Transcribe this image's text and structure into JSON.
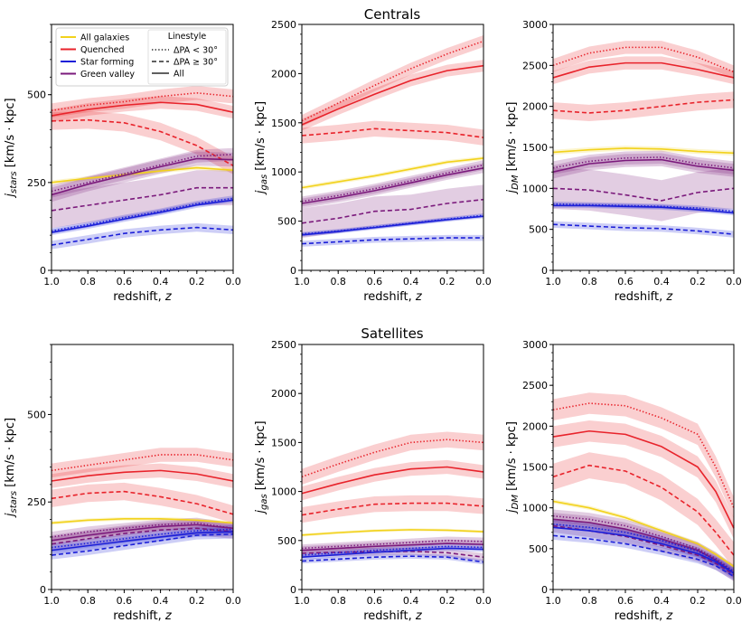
{
  "figure": {
    "rows": [
      {
        "title": "Centrals"
      },
      {
        "title": "Satellites"
      }
    ]
  },
  "legend": {
    "samples_title": "",
    "entries": [
      {
        "label": "All galaxies",
        "color": "#f2d21c"
      },
      {
        "label": "Quenched",
        "color": "#e8232b"
      },
      {
        "label": "Star forming",
        "color": "#1b1fd8"
      },
      {
        "label": "Green valley",
        "color": "#7b1a7c"
      }
    ],
    "linestyle_title": "Linestyle",
    "linestyles": [
      {
        "label": "ΔPA < 30°",
        "style": "dotted"
      },
      {
        "label": "ΔPA  ≥  30°",
        "style": "dashed"
      },
      {
        "label": "All",
        "style": "solid"
      }
    ]
  },
  "chart_data": [
    {
      "type": "line",
      "row": "Centrals",
      "panel": "stars",
      "xlabel": "redshift, z",
      "ylabel": "j_stars [km/s · kpc]",
      "xlim": [
        1.0,
        0.0
      ],
      "ylim": [
        0,
        700
      ],
      "xticks": [
        "1.0",
        "0.8",
        "0.6",
        "0.4",
        "0.2",
        "0.0"
      ],
      "yticks": [
        0,
        250,
        500
      ],
      "yminor": 50,
      "x": [
        1.0,
        0.8,
        0.6,
        0.4,
        0.2,
        0.0
      ],
      "series": [
        {
          "name": "Quenched",
          "style": "dotted",
          "values": [
            455,
            470,
            480,
            495,
            505,
            495
          ],
          "err": 20
        },
        {
          "name": "Quenched",
          "style": "solid",
          "values": [
            440,
            458,
            470,
            478,
            472,
            450
          ],
          "err": 18
        },
        {
          "name": "Quenched",
          "style": "dashed",
          "values": [
            425,
            428,
            420,
            395,
            355,
            298
          ],
          "err": 25
        },
        {
          "name": "All galaxies",
          "style": "solid",
          "values": [
            250,
            262,
            272,
            283,
            292,
            285
          ],
          "err": 6
        },
        {
          "name": "Green valley",
          "style": "dotted",
          "values": [
            225,
            250,
            275,
            300,
            325,
            330
          ],
          "err": 18
        },
        {
          "name": "Green valley",
          "style": "solid",
          "values": [
            215,
            245,
            270,
            295,
            318,
            315
          ],
          "err": 20
        },
        {
          "name": "Green valley",
          "style": "dashed",
          "values": [
            170,
            185,
            200,
            215,
            235,
            235
          ],
          "err": 50
        },
        {
          "name": "Star forming",
          "style": "dotted",
          "values": [
            112,
            130,
            150,
            168,
            190,
            205
          ],
          "err": 8
        },
        {
          "name": "Star forming",
          "style": "solid",
          "values": [
            108,
            126,
            146,
            165,
            186,
            200
          ],
          "err": 8
        },
        {
          "name": "Star forming",
          "style": "dashed",
          "values": [
            72,
            88,
            105,
            115,
            122,
            115
          ],
          "err": 12
        }
      ]
    },
    {
      "type": "line",
      "row": "Centrals",
      "panel": "gas",
      "xlabel": "redshift, z",
      "ylabel": "j_gas [km/s · kpc]",
      "xlim": [
        1.0,
        0.0
      ],
      "ylim": [
        0,
        2500
      ],
      "xticks": [
        "1.0",
        "0.8",
        "0.6",
        "0.4",
        "0.2",
        "0.0"
      ],
      "yticks": [
        0,
        500,
        1000,
        1500,
        2000,
        2500
      ],
      "yminor": 100,
      "x": [
        1.0,
        0.8,
        0.6,
        0.4,
        0.2,
        0.0
      ],
      "series": [
        {
          "name": "Quenched",
          "style": "dotted",
          "values": [
            1520,
            1700,
            1880,
            2050,
            2200,
            2330
          ],
          "err": 60
        },
        {
          "name": "Quenched",
          "style": "solid",
          "values": [
            1480,
            1640,
            1790,
            1930,
            2030,
            2080
          ],
          "err": 60
        },
        {
          "name": "Quenched",
          "style": "dashed",
          "values": [
            1370,
            1400,
            1440,
            1420,
            1400,
            1350
          ],
          "err": 80
        },
        {
          "name": "All galaxies",
          "style": "solid",
          "values": [
            840,
            900,
            960,
            1030,
            1100,
            1140
          ],
          "err": 20
        },
        {
          "name": "Green valley",
          "style": "dotted",
          "values": [
            700,
            760,
            830,
            910,
            990,
            1070
          ],
          "err": 50
        },
        {
          "name": "Green valley",
          "style": "solid",
          "values": [
            680,
            740,
            810,
            890,
            970,
            1040
          ],
          "err": 50
        },
        {
          "name": "Green valley",
          "style": "dashed",
          "values": [
            480,
            530,
            600,
            620,
            680,
            720
          ],
          "err": 150
        },
        {
          "name": "Star forming",
          "style": "dotted",
          "values": [
            370,
            400,
            440,
            480,
            520,
            560
          ],
          "err": 20
        },
        {
          "name": "Star forming",
          "style": "solid",
          "values": [
            360,
            395,
            435,
            475,
            515,
            550
          ],
          "err": 20
        },
        {
          "name": "Star forming",
          "style": "dashed",
          "values": [
            270,
            290,
            310,
            320,
            330,
            330
          ],
          "err": 30
        }
      ]
    },
    {
      "type": "line",
      "row": "Centrals",
      "panel": "DM",
      "xlabel": "redshift, z",
      "ylabel": "j_DM [km/s · kpc]",
      "xlim": [
        1.0,
        0.0
      ],
      "ylim": [
        0,
        3000
      ],
      "xticks": [
        "1.0",
        "0.8",
        "0.6",
        "0.4",
        "0.2",
        "0.0"
      ],
      "yticks": [
        0,
        500,
        1000,
        1500,
        2000,
        2500,
        3000
      ],
      "yminor": 100,
      "x": [
        1.0,
        0.8,
        0.6,
        0.4,
        0.2,
        0.0
      ],
      "series": [
        {
          "name": "Quenched",
          "style": "dotted",
          "values": [
            2500,
            2650,
            2720,
            2720,
            2600,
            2420
          ],
          "err": 80
        },
        {
          "name": "Quenched",
          "style": "solid",
          "values": [
            2350,
            2480,
            2530,
            2530,
            2450,
            2350
          ],
          "err": 80
        },
        {
          "name": "Quenched",
          "style": "dashed",
          "values": [
            1950,
            1920,
            1950,
            2000,
            2050,
            2080
          ],
          "err": 100
        },
        {
          "name": "All galaxies",
          "style": "solid",
          "values": [
            1440,
            1470,
            1490,
            1480,
            1450,
            1430
          ],
          "err": 30
        },
        {
          "name": "Green valley",
          "style": "dotted",
          "values": [
            1250,
            1330,
            1370,
            1380,
            1300,
            1250
          ],
          "err": 80
        },
        {
          "name": "Green valley",
          "style": "solid",
          "values": [
            1200,
            1300,
            1340,
            1350,
            1270,
            1220
          ],
          "err": 80
        },
        {
          "name": "Green valley",
          "style": "dashed",
          "values": [
            1000,
            980,
            920,
            850,
            950,
            1000
          ],
          "err": 250
        },
        {
          "name": "Star forming",
          "style": "dotted",
          "values": [
            810,
            800,
            790,
            780,
            760,
            720
          ],
          "err": 30
        },
        {
          "name": "Star forming",
          "style": "solid",
          "values": [
            790,
            790,
            780,
            770,
            740,
            700
          ],
          "err": 30
        },
        {
          "name": "Star forming",
          "style": "dashed",
          "values": [
            560,
            540,
            520,
            510,
            480,
            440
          ],
          "err": 40
        }
      ]
    },
    {
      "type": "line",
      "row": "Satellites",
      "panel": "stars",
      "xlabel": "redshift, z",
      "ylabel": "j_stars [km/s · kpc]",
      "xlim": [
        1.0,
        0.0
      ],
      "ylim": [
        0,
        700
      ],
      "xticks": [
        "1.0",
        "0.8",
        "0.6",
        "0.4",
        "0.2",
        "0.0"
      ],
      "yticks": [
        0,
        250,
        500
      ],
      "yminor": 50,
      "x": [
        1.0,
        0.8,
        0.6,
        0.4,
        0.2,
        0.0
      ],
      "series": [
        {
          "name": "Quenched",
          "style": "dotted",
          "values": [
            340,
            355,
            370,
            385,
            385,
            370
          ],
          "err": 20
        },
        {
          "name": "Quenched",
          "style": "solid",
          "values": [
            310,
            325,
            335,
            340,
            330,
            310
          ],
          "err": 20
        },
        {
          "name": "Quenched",
          "style": "dashed",
          "values": [
            260,
            275,
            280,
            265,
            245,
            215
          ],
          "err": 25
        },
        {
          "name": "All galaxies",
          "style": "solid",
          "values": [
            190,
            198,
            202,
            202,
            198,
            190
          ],
          "err": 5
        },
        {
          "name": "Green valley",
          "style": "dotted",
          "values": [
            150,
            165,
            175,
            185,
            190,
            175
          ],
          "err": 15
        },
        {
          "name": "Green valley",
          "style": "solid",
          "values": [
            140,
            155,
            168,
            180,
            185,
            175
          ],
          "err": 15
        },
        {
          "name": "Green valley",
          "style": "dashed",
          "values": [
            130,
            145,
            160,
            170,
            175,
            165
          ],
          "err": 20
        },
        {
          "name": "Star forming",
          "style": "dotted",
          "values": [
            120,
            132,
            145,
            158,
            168,
            172
          ],
          "err": 12
        },
        {
          "name": "Star forming",
          "style": "solid",
          "values": [
            112,
            125,
            138,
            150,
            162,
            165
          ],
          "err": 12
        },
        {
          "name": "Star forming",
          "style": "dashed",
          "values": [
            98,
            110,
            125,
            140,
            155,
            158
          ],
          "err": 12
        }
      ]
    },
    {
      "type": "line",
      "row": "Satellites",
      "panel": "gas",
      "xlabel": "redshift, z",
      "ylabel": "j_gas [km/s · kpc]",
      "xlim": [
        1.0,
        0.0
      ],
      "ylim": [
        0,
        2500
      ],
      "xticks": [
        "1.0",
        "0.8",
        "0.6",
        "0.4",
        "0.2",
        "0.0"
      ],
      "yticks": [
        0,
        500,
        1000,
        1500,
        2000,
        2500
      ],
      "yminor": 100,
      "x": [
        1.0,
        0.8,
        0.6,
        0.4,
        0.2,
        0.0
      ],
      "series": [
        {
          "name": "Quenched",
          "style": "dotted",
          "values": [
            1150,
            1280,
            1400,
            1500,
            1530,
            1500
          ],
          "err": 80
        },
        {
          "name": "Quenched",
          "style": "solid",
          "values": [
            980,
            1080,
            1170,
            1230,
            1250,
            1200
          ],
          "err": 70
        },
        {
          "name": "Quenched",
          "style": "dashed",
          "values": [
            760,
            820,
            870,
            880,
            880,
            850
          ],
          "err": 80
        },
        {
          "name": "All galaxies",
          "style": "solid",
          "values": [
            555,
            580,
            600,
            610,
            605,
            590
          ],
          "err": 15
        },
        {
          "name": "Green valley",
          "style": "dotted",
          "values": [
            420,
            440,
            460,
            480,
            500,
            490
          ],
          "err": 40
        },
        {
          "name": "Green valley",
          "style": "solid",
          "values": [
            400,
            420,
            440,
            455,
            470,
            460
          ],
          "err": 40
        },
        {
          "name": "Green valley",
          "style": "dashed",
          "values": [
            370,
            380,
            385,
            390,
            375,
            330
          ],
          "err": 40
        },
        {
          "name": "Star forming",
          "style": "dotted",
          "values": [
            350,
            375,
            400,
            420,
            440,
            430
          ],
          "err": 25
        },
        {
          "name": "Star forming",
          "style": "solid",
          "values": [
            330,
            355,
            380,
            400,
            420,
            410
          ],
          "err": 25
        },
        {
          "name": "Star forming",
          "style": "dashed",
          "values": [
            290,
            310,
            330,
            340,
            330,
            280
          ],
          "err": 25
        }
      ]
    },
    {
      "type": "line",
      "row": "Satellites",
      "panel": "DM",
      "xlabel": "redshift, z",
      "ylabel": "j_DM [km/s · kpc]",
      "xlim": [
        1.0,
        0.0
      ],
      "ylim": [
        0,
        3000
      ],
      "xticks": [
        "1.0",
        "0.8",
        "0.6",
        "0.4",
        "0.2",
        "0.0"
      ],
      "yticks": [
        0,
        500,
        1000,
        1500,
        2000,
        2500,
        3000
      ],
      "yminor": 100,
      "x": [
        1.0,
        0.8,
        0.6,
        0.4,
        0.2,
        0.1,
        0.0
      ],
      "series": [
        {
          "name": "Quenched",
          "style": "dotted",
          "values": [
            2200,
            2280,
            2250,
            2100,
            1900,
            1500,
            1000
          ],
          "err": 130
        },
        {
          "name": "Quenched",
          "style": "solid",
          "values": [
            1870,
            1940,
            1900,
            1750,
            1500,
            1200,
            750
          ],
          "err": 130
        },
        {
          "name": "Quenched",
          "style": "dashed",
          "values": [
            1380,
            1520,
            1450,
            1250,
            950,
            700,
            420
          ],
          "err": 160
        },
        {
          "name": "All galaxies",
          "style": "solid",
          "values": [
            1080,
            1000,
            880,
            720,
            560,
            430,
            280
          ],
          "err": 25
        },
        {
          "name": "Green valley",
          "style": "dotted",
          "values": [
            900,
            860,
            780,
            650,
            500,
            380,
            220
          ],
          "err": 80
        },
        {
          "name": "Green valley",
          "style": "solid",
          "values": [
            860,
            820,
            740,
            620,
            480,
            360,
            200
          ],
          "err": 80
        },
        {
          "name": "Green valley",
          "style": "dashed",
          "values": [
            780,
            720,
            650,
            540,
            420,
            320,
            180
          ],
          "err": 80
        },
        {
          "name": "Star forming",
          "style": "dotted",
          "values": [
            800,
            760,
            700,
            600,
            470,
            360,
            220
          ],
          "err": 50
        },
        {
          "name": "Star forming",
          "style": "solid",
          "values": [
            760,
            720,
            660,
            560,
            440,
            340,
            200
          ],
          "err": 50
        },
        {
          "name": "Star forming",
          "style": "dashed",
          "values": [
            660,
            620,
            560,
            470,
            370,
            290,
            160
          ],
          "err": 50
        }
      ]
    }
  ]
}
